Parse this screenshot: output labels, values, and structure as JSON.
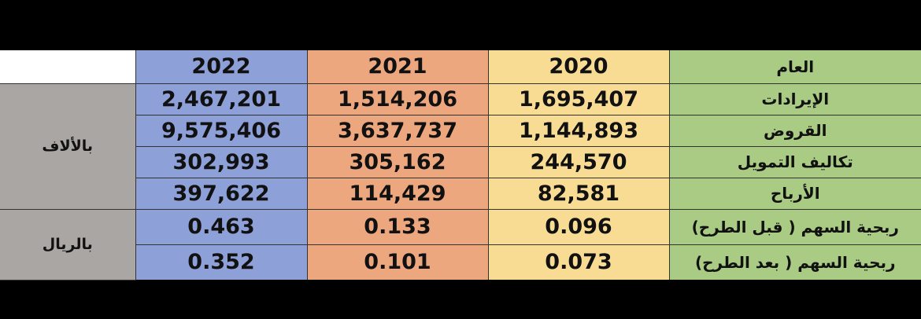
{
  "table": {
    "header_label": "العام",
    "years": [
      "2022",
      "2021",
      "2020"
    ],
    "groups": [
      {
        "unit": "بالألاف",
        "rows": [
          {
            "label": "الإيرادات",
            "values": [
              "2,467,201",
              "1,514,206",
              "1,695,407"
            ]
          },
          {
            "label": "القروض",
            "values": [
              "9,575,406",
              "3,637,737",
              "1,144,893"
            ]
          },
          {
            "label": "تكاليف التمويل",
            "values": [
              "302,993",
              "305,162",
              "244,570"
            ]
          },
          {
            "label": "الأرباح",
            "values": [
              "397,622",
              "114,429",
              "82,581"
            ]
          }
        ]
      },
      {
        "unit": "بالريال",
        "rows": [
          {
            "label": "ربحية السهم ( قبل الطرح)",
            "values": [
              "0.463",
              "0.133",
              "0.096"
            ]
          },
          {
            "label": "ربحية السهم ( بعد الطرح)",
            "values": [
              "0.352",
              "0.101",
              "0.073"
            ]
          }
        ]
      }
    ]
  },
  "colors": {
    "year_2022": "#8ea0d8",
    "year_2021": "#eda77f",
    "year_2020": "#f8dc94",
    "label_column": "#a9cb83",
    "unit_column": "#a9a6a4",
    "background": "#000000"
  }
}
